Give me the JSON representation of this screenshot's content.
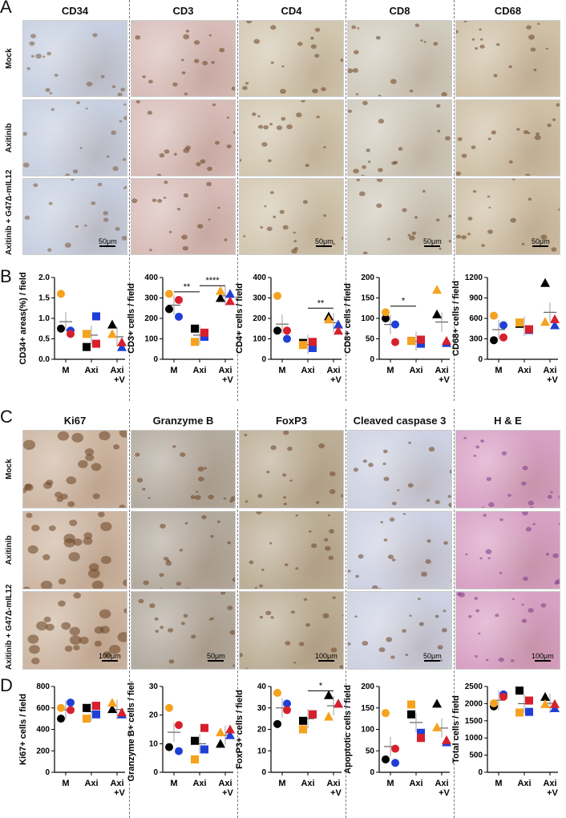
{
  "panelA": {
    "letter": "A",
    "columns": [
      "CD34",
      "CD3",
      "CD4",
      "CD8",
      "CD68"
    ],
    "rows": [
      "Mock",
      "Axitinib",
      "Axitinib + G47Δ-mIL12"
    ],
    "tint": [
      "#c7cfe0",
      "#d8bcb8",
      "#d2c7b0",
      "#d0cbbd",
      "#cfc0a6"
    ],
    "scalebars": [
      "50μm",
      "50μm",
      "50μm",
      "50μm"
    ]
  },
  "panelB": {
    "letter": "B"
  },
  "panelC": {
    "letter": "C",
    "columns": [
      "Ki67",
      "Granzyme B",
      "FoxP3",
      "Cleaved caspase 3",
      "H & E"
    ],
    "rows": [
      "Mock",
      "Axitinib",
      "Axitinib + G47Δ-mIL12"
    ],
    "tint": [
      "#cdb6a2",
      "#b3aa9e",
      "#bcae96",
      "#cdd1e2",
      "#d8a0c4"
    ],
    "scalebars": [
      "100μm",
      "50μm",
      "100μm",
      "50μm",
      "100μm"
    ]
  },
  "panelD": {
    "letter": "D"
  },
  "chart_data": [
    {
      "type": "scatter",
      "panel": "B",
      "ylabel": "CD34+ areas(%) / field",
      "ylim": [
        0,
        2
      ],
      "yticks": [
        "0.0",
        "0.5",
        "1.0",
        "1.5",
        "2.0"
      ],
      "categories": [
        "M",
        "Axi",
        "Axi\n+V"
      ],
      "groups": [
        [
          0.75,
          0.7,
          1.6,
          0.62
        ],
        [
          0.3,
          1.05,
          0.62,
          0.38
        ],
        [
          0.85,
          0.3,
          0.62,
          0.42
        ]
      ],
      "means": [
        0.92,
        0.59,
        0.55
      ],
      "sig": []
    },
    {
      "type": "scatter",
      "panel": "B",
      "ylabel": "CD3+ cells / field",
      "ylim": [
        0,
        400
      ],
      "yticks": [
        "0",
        "100",
        "200",
        "300",
        "400"
      ],
      "categories": [
        "M",
        "Axi",
        "Axi\n+V"
      ],
      "groups": [
        [
          245,
          208,
          320,
          290
        ],
        [
          150,
          110,
          85,
          130
        ],
        [
          300,
          320,
          335,
          285
        ]
      ],
      "means": [
        265,
        118,
        310
      ],
      "sig": [
        {
          "text": "**",
          "from": 0,
          "to": 1,
          "y": 330
        },
        {
          "text": "****",
          "from": 1,
          "to": 2,
          "y": 360
        }
      ]
    },
    {
      "type": "scatter",
      "panel": "B",
      "ylabel": "CD4+ cells / field",
      "ylim": [
        0,
        400
      ],
      "yticks": [
        "0",
        "100",
        "200",
        "300",
        "400"
      ],
      "categories": [
        "M",
        "Axi",
        "Axi\n+V"
      ],
      "groups": [
        [
          140,
          100,
          310,
          140
        ],
        [
          80,
          55,
          70,
          85
        ],
        [
          210,
          170,
          195,
          140
        ]
      ],
      "means": [
        172,
        72,
        179
      ],
      "sig": [
        {
          "text": "**",
          "from": 1,
          "to": 2,
          "y": 250
        }
      ]
    },
    {
      "type": "scatter",
      "panel": "B",
      "ylabel": "CD8+ cells / field",
      "ylim": [
        0,
        200
      ],
      "yticks": [
        "0",
        "50",
        "100",
        "150",
        "200"
      ],
      "categories": [
        "M",
        "Axi",
        "Axi\n+V"
      ],
      "groups": [
        [
          100,
          85,
          115,
          42
        ],
        [
          45,
          38,
          45,
          48
        ],
        [
          110,
          40,
          170,
          45
        ]
      ],
      "means": [
        85,
        44,
        91
      ],
      "sig": [
        {
          "text": "*",
          "from": 0,
          "to": 1,
          "y": 130
        }
      ]
    },
    {
      "type": "scatter",
      "panel": "B",
      "ylabel": "CD68+ cells / field",
      "ylim": [
        0,
        1200
      ],
      "yticks": [
        "0",
        "300",
        "600",
        "900",
        "1200"
      ],
      "categories": [
        "M",
        "Axi",
        "Axi\n+V"
      ],
      "groups": [
        [
          280,
          500,
          640,
          320
        ],
        [
          520,
          430,
          540,
          440
        ],
        [
          1120,
          500,
          550,
          590
        ]
      ],
      "means": [
        435,
        483,
        690
      ],
      "sig": []
    },
    {
      "type": "scatter",
      "panel": "D",
      "ylabel": "Ki67+ cells / field",
      "ylim": [
        0,
        800
      ],
      "yticks": [
        "0",
        "200",
        "400",
        "600",
        "800"
      ],
      "categories": [
        "M",
        "Axi",
        "Axi\n+V"
      ],
      "groups": [
        [
          500,
          650,
          600,
          580
        ],
        [
          600,
          540,
          500,
          620
        ],
        [
          590,
          540,
          650,
          560
        ]
      ],
      "means": [
        582,
        565,
        585
      ],
      "sig": []
    },
    {
      "type": "scatter",
      "panel": "D",
      "ylabel": "Granzyme B+ cells / field",
      "ylim": [
        0,
        30
      ],
      "yticks": [
        "0",
        "10",
        "20",
        "30"
      ],
      "categories": [
        "M",
        "Axi",
        "Axi\n+V"
      ],
      "groups": [
        [
          8.8,
          7.4,
          22.5,
          16.5
        ],
        [
          11,
          8,
          4.5,
          15.5
        ],
        [
          10,
          13,
          14,
          15
        ]
      ],
      "means": [
        14,
        10,
        13
      ],
      "sig": []
    },
    {
      "type": "scatter",
      "panel": "D",
      "ylabel": "FoxP3+ cells / field",
      "ylim": [
        0,
        40
      ],
      "yticks": [
        "0",
        "10",
        "20",
        "30",
        "40"
      ],
      "categories": [
        "M",
        "Axi",
        "Axi\n+V"
      ],
      "groups": [
        [
          22.5,
          32,
          37,
          29
        ],
        [
          24,
          27,
          20,
          27
        ],
        [
          36,
          32,
          26,
          32
        ]
      ],
      "means": [
        30,
        25,
        31
      ],
      "sig": [
        {
          "text": "*",
          "from": 1,
          "to": 2,
          "y": 38
        }
      ]
    },
    {
      "type": "scatter",
      "panel": "D",
      "ylabel": "Apoptotic cells / field",
      "ylim": [
        0,
        200
      ],
      "yticks": [
        "0",
        "50",
        "100",
        "150",
        "200"
      ],
      "categories": [
        "M",
        "Axi",
        "Axi\n+V"
      ],
      "groups": [
        [
          30,
          22,
          138,
          55
        ],
        [
          135,
          92,
          158,
          80
        ],
        [
          160,
          70,
          105,
          75
        ]
      ],
      "means": [
        60,
        116,
        103
      ],
      "sig": []
    },
    {
      "type": "scatter",
      "panel": "D",
      "ylabel": "Total cells / field",
      "ylim": [
        0,
        2500
      ],
      "yticks": [
        "0",
        "500",
        "1000",
        "1500",
        "2000",
        "2500"
      ],
      "categories": [
        "M",
        "Axi",
        "Axi\n+V"
      ],
      "groups": [
        [
          1920,
          2270,
          2010,
          2200
        ],
        [
          2380,
          1760,
          1740,
          2090
        ],
        [
          2200,
          1870,
          1990,
          1990
        ]
      ],
      "means": [
        2100,
        2000,
        2010
      ],
      "sig": []
    }
  ],
  "colors": {
    "black": "#000000",
    "blue": "#1f3fd6",
    "orange": "#f5a21e",
    "red": "#d8202c"
  }
}
